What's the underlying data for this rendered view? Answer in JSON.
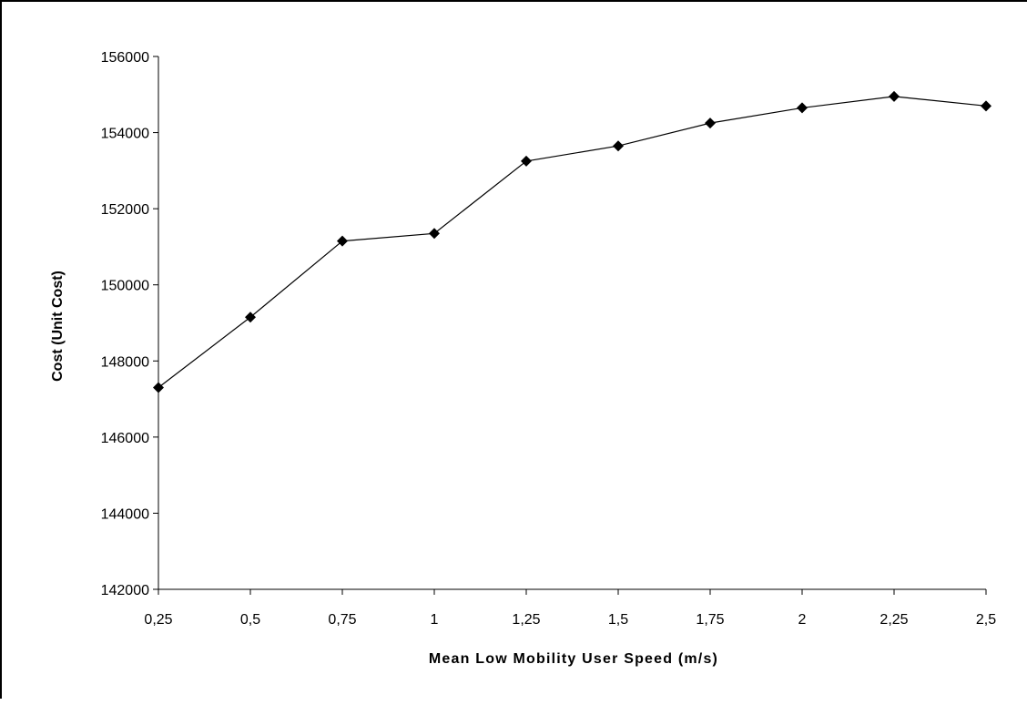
{
  "chart_data": {
    "type": "line",
    "title": "",
    "xlabel": "Mean Low Mobility User Speed (m/s)",
    "ylabel": "Cost (Unit Cost)",
    "x_ticks": [
      "0,25",
      "0,5",
      "0,75",
      "1",
      "1,25",
      "1,5",
      "1,75",
      "2",
      "2,25",
      "2,5"
    ],
    "y_ticks": [
      "142000",
      "144000",
      "146000",
      "148000",
      "150000",
      "152000",
      "154000",
      "156000"
    ],
    "ylim": [
      142000,
      156000
    ],
    "grid": false,
    "legend": "none",
    "series": [
      {
        "marker": "diamond",
        "color": "#000000",
        "x": [
          0.25,
          0.5,
          0.75,
          1,
          1.25,
          1.5,
          1.75,
          2,
          2.25,
          2.5
        ],
        "values": [
          147300,
          149150,
          151150,
          151350,
          153250,
          153650,
          154250,
          154650,
          154950,
          154700
        ]
      }
    ]
  }
}
